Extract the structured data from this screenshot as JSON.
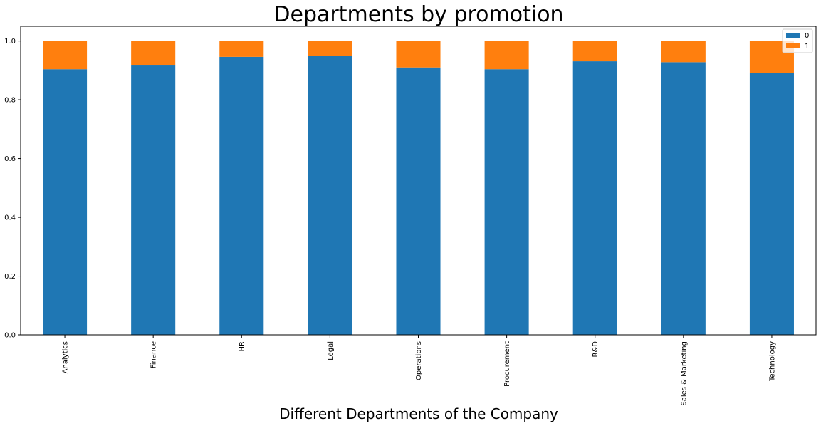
{
  "chart_data": {
    "type": "bar",
    "stacked": true,
    "title": "Departments by promotion",
    "xlabel": "Different Departments of the Company",
    "ylabel": "",
    "ylim": [
      0,
      1.05
    ],
    "yticks": [
      "0.0",
      "0.2",
      "0.4",
      "0.6",
      "0.8",
      "1.0"
    ],
    "categories": [
      "Analytics",
      "Finance",
      "HR",
      "Legal",
      "Operations",
      "Procurement",
      "R&D",
      "Sales & Marketing",
      "Technology"
    ],
    "series": [
      {
        "name": "0",
        "color": "#1f77b4",
        "values": [
          0.904,
          0.919,
          0.946,
          0.949,
          0.91,
          0.904,
          0.931,
          0.928,
          0.892
        ]
      },
      {
        "name": "1",
        "color": "#ff7f0e",
        "values": [
          0.096,
          0.081,
          0.054,
          0.051,
          0.09,
          0.096,
          0.069,
          0.072,
          0.108
        ]
      }
    ],
    "legend": "top-right",
    "grid": false
  }
}
